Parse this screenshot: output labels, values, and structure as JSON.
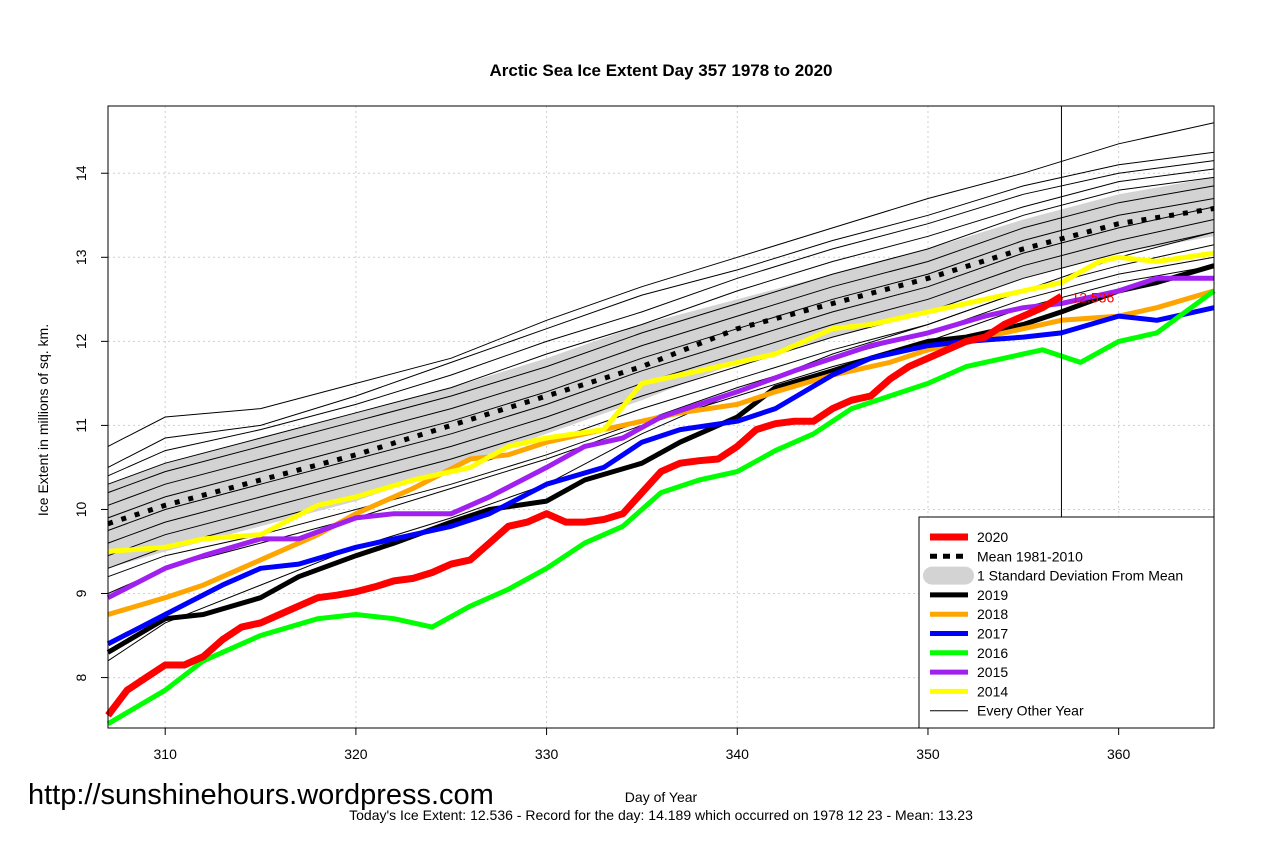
{
  "chart_data": {
    "type": "line",
    "title": "Arctic Sea Ice Extent Day 357 1978 to 2020",
    "xlabel": "Day of Year",
    "ylabel": "Ice Extent in millions of sq. km.",
    "xlim": [
      307,
      365
    ],
    "ylim": [
      7.4,
      14.8
    ],
    "xticks": [
      310,
      320,
      330,
      340,
      350,
      360
    ],
    "yticks": [
      8,
      9,
      10,
      11,
      12,
      13,
      14
    ],
    "grid": true,
    "current_day_marker": 357,
    "current_value_label": "12.536",
    "legend_position": "bottom-right",
    "band": {
      "name": "1 Standard Deviation From Mean",
      "color": "#d3d3d3",
      "x": [
        307,
        310,
        315,
        320,
        325,
        330,
        335,
        340,
        345,
        350,
        355,
        360,
        365
      ],
      "lower": [
        9.3,
        9.5,
        9.8,
        10.1,
        10.5,
        10.9,
        11.3,
        11.75,
        12.05,
        12.35,
        12.75,
        13.05,
        13.25
      ],
      "upper": [
        10.3,
        10.55,
        10.85,
        11.15,
        11.45,
        11.8,
        12.2,
        12.5,
        12.8,
        13.1,
        13.45,
        13.75,
        13.95
      ]
    },
    "mean": {
      "name": "Mean 1981-2010",
      "color": "#000000",
      "x": [
        307,
        310,
        315,
        320,
        325,
        330,
        335,
        340,
        345,
        350,
        355,
        360,
        365
      ],
      "values": [
        9.83,
        10.05,
        10.35,
        10.65,
        11.0,
        11.35,
        11.7,
        12.15,
        12.45,
        12.75,
        13.1,
        13.4,
        13.58
      ]
    },
    "series": [
      {
        "name": "2020",
        "color": "#ff0000",
        "width": 7,
        "x": [
          307,
          308,
          309,
          310,
          311,
          312,
          313,
          314,
          315,
          316,
          317,
          318,
          319,
          320,
          321,
          322,
          323,
          324,
          325,
          326,
          327,
          328,
          329,
          330,
          331,
          332,
          333,
          334,
          335,
          336,
          337,
          338,
          339,
          340,
          341,
          342,
          343,
          344,
          345,
          346,
          347,
          348,
          349,
          350,
          351,
          352,
          353,
          354,
          355,
          356,
          357
        ],
        "values": [
          7.55,
          7.85,
          8.0,
          8.15,
          8.15,
          8.25,
          8.45,
          8.6,
          8.65,
          8.75,
          8.85,
          8.95,
          8.98,
          9.02,
          9.08,
          9.15,
          9.18,
          9.25,
          9.35,
          9.4,
          9.6,
          9.8,
          9.85,
          9.95,
          9.85,
          9.85,
          9.88,
          9.95,
          10.2,
          10.45,
          10.55,
          10.58,
          10.6,
          10.75,
          10.95,
          11.02,
          11.05,
          11.05,
          11.2,
          11.3,
          11.35,
          11.55,
          11.7,
          11.8,
          11.9,
          12.0,
          12.05,
          12.2,
          12.3,
          12.4,
          12.536
        ]
      },
      {
        "name": "2019",
        "color": "#000000",
        "width": 5,
        "x": [
          307,
          310,
          312,
          315,
          317,
          320,
          322,
          325,
          327,
          330,
          332,
          335,
          337,
          340,
          342,
          345,
          347,
          350,
          352,
          355,
          357,
          360,
          362,
          365
        ],
        "values": [
          8.3,
          8.7,
          8.75,
          8.95,
          9.2,
          9.45,
          9.6,
          9.85,
          10.0,
          10.1,
          10.35,
          10.55,
          10.8,
          11.1,
          11.45,
          11.65,
          11.8,
          12.0,
          12.05,
          12.2,
          12.35,
          12.6,
          12.7,
          12.9
        ]
      },
      {
        "name": "2018",
        "color": "#ffa500",
        "width": 5,
        "x": [
          307,
          310,
          312,
          315,
          318,
          320,
          323,
          326,
          328,
          330,
          333,
          335,
          337,
          340,
          342,
          345,
          348,
          350,
          352,
          355,
          357,
          360,
          362,
          365
        ],
        "values": [
          8.75,
          8.95,
          9.1,
          9.4,
          9.7,
          9.95,
          10.25,
          10.6,
          10.65,
          10.8,
          10.95,
          11.05,
          11.15,
          11.25,
          11.4,
          11.6,
          11.75,
          11.9,
          12.0,
          12.15,
          12.25,
          12.3,
          12.4,
          12.6
        ]
      },
      {
        "name": "2017",
        "color": "#0000ff",
        "width": 5,
        "x": [
          307,
          310,
          313,
          315,
          317,
          320,
          323,
          325,
          327,
          330,
          333,
          335,
          337,
          340,
          342,
          345,
          347,
          350,
          352,
          355,
          357,
          360,
          362,
          365
        ],
        "values": [
          8.4,
          8.75,
          9.1,
          9.3,
          9.35,
          9.55,
          9.7,
          9.8,
          9.95,
          10.3,
          10.5,
          10.8,
          10.95,
          11.05,
          11.2,
          11.6,
          11.8,
          11.95,
          12.0,
          12.05,
          12.1,
          12.3,
          12.25,
          12.4
        ]
      },
      {
        "name": "2016",
        "color": "#00ff00",
        "width": 5,
        "x": [
          307,
          310,
          312,
          315,
          318,
          320,
          322,
          324,
          326,
          328,
          330,
          332,
          334,
          336,
          338,
          340,
          342,
          344,
          346,
          348,
          350,
          352,
          354,
          356,
          358,
          360,
          362,
          365
        ],
        "values": [
          7.45,
          7.85,
          8.2,
          8.5,
          8.7,
          8.75,
          8.7,
          8.6,
          8.85,
          9.05,
          9.3,
          9.6,
          9.8,
          10.2,
          10.35,
          10.45,
          10.7,
          10.9,
          11.2,
          11.35,
          11.5,
          11.7,
          11.8,
          11.9,
          11.75,
          12.0,
          12.1,
          12.6
        ]
      },
      {
        "name": "2015",
        "color": "#a020f0",
        "width": 5,
        "x": [
          307,
          310,
          312,
          315,
          317,
          320,
          322,
          325,
          327,
          330,
          332,
          334,
          336,
          338,
          340,
          343,
          345,
          347,
          350,
          353,
          355,
          357,
          360,
          362,
          365
        ],
        "values": [
          8.95,
          9.3,
          9.45,
          9.65,
          9.65,
          9.9,
          9.95,
          9.95,
          10.15,
          10.5,
          10.75,
          10.85,
          11.1,
          11.25,
          11.4,
          11.65,
          11.8,
          11.95,
          12.1,
          12.3,
          12.4,
          12.45,
          12.6,
          12.75,
          12.75
        ]
      },
      {
        "name": "2014",
        "color": "#ffff00",
        "width": 5,
        "x": [
          307,
          310,
          312,
          315,
          318,
          320,
          323,
          326,
          328,
          330,
          333,
          335,
          337,
          340,
          342,
          345,
          347,
          350,
          352,
          355,
          357,
          359,
          360,
          362,
          365
        ],
        "values": [
          9.5,
          9.55,
          9.65,
          9.7,
          10.05,
          10.15,
          10.35,
          10.5,
          10.75,
          10.85,
          10.95,
          11.5,
          11.6,
          11.75,
          11.85,
          12.15,
          12.2,
          12.35,
          12.45,
          12.6,
          12.7,
          12.95,
          13.0,
          12.95,
          13.05
        ]
      }
    ],
    "other_years": {
      "name": "Every Other Year",
      "color": "#000000",
      "width": 1,
      "x": [
        307,
        310,
        315,
        320,
        325,
        330,
        335,
        340,
        345,
        350,
        355,
        360,
        365
      ],
      "lines": [
        [
          10.75,
          11.1,
          11.2,
          11.5,
          11.8,
          12.25,
          12.65,
          13.0,
          13.35,
          13.7,
          14.0,
          14.35,
          14.6
        ],
        [
          10.5,
          10.85,
          11.0,
          11.35,
          11.75,
          12.15,
          12.55,
          12.85,
          13.2,
          13.5,
          13.85,
          14.1,
          14.25
        ],
        [
          10.4,
          10.7,
          10.95,
          11.25,
          11.6,
          12.0,
          12.35,
          12.75,
          13.1,
          13.4,
          13.75,
          14.0,
          14.15
        ],
        [
          10.3,
          10.55,
          10.85,
          11.15,
          11.45,
          11.85,
          12.2,
          12.6,
          12.95,
          13.25,
          13.6,
          13.9,
          14.05
        ],
        [
          10.2,
          10.45,
          10.75,
          11.05,
          11.35,
          11.7,
          12.1,
          12.45,
          12.8,
          13.1,
          13.5,
          13.8,
          13.95
        ],
        [
          10.05,
          10.3,
          10.6,
          10.9,
          11.2,
          11.55,
          11.95,
          12.3,
          12.65,
          12.95,
          13.35,
          13.65,
          13.85
        ],
        [
          9.9,
          10.15,
          10.45,
          10.75,
          11.05,
          11.4,
          11.8,
          12.15,
          12.5,
          12.8,
          13.2,
          13.5,
          13.7
        ],
        [
          9.75,
          10.0,
          10.3,
          10.6,
          10.9,
          11.25,
          11.65,
          12.0,
          12.35,
          12.65,
          13.05,
          13.35,
          13.6
        ],
        [
          9.6,
          9.85,
          10.15,
          10.45,
          10.75,
          11.1,
          11.5,
          11.85,
          12.2,
          12.5,
          12.9,
          13.2,
          13.45
        ],
        [
          9.45,
          9.7,
          10.0,
          10.3,
          10.6,
          10.95,
          11.35,
          11.7,
          12.05,
          12.35,
          12.75,
          13.05,
          13.3
        ],
        [
          9.3,
          9.55,
          9.85,
          10.15,
          10.45,
          10.8,
          11.2,
          11.55,
          11.9,
          12.2,
          12.6,
          12.9,
          13.15
        ],
        [
          9.2,
          9.45,
          9.7,
          10.0,
          10.3,
          10.65,
          11.05,
          11.45,
          11.8,
          12.1,
          12.5,
          12.8,
          13.0
        ],
        [
          8.2,
          8.65,
          9.1,
          9.55,
          9.9,
          10.3,
          10.9,
          11.4,
          11.85,
          12.2,
          12.6,
          13.0,
          13.3
        ],
        [
          9.0,
          9.3,
          9.6,
          9.9,
          10.25,
          10.6,
          11.0,
          11.35,
          11.7,
          12.0,
          12.4,
          12.7,
          12.9
        ]
      ]
    }
  },
  "page": {
    "url": "http://sunshinehours.wordpress.com",
    "footer": "Today's Ice Extent: 12.536  - Record for the day: 14.189 which occurred on 1978 12 23  - Mean: 13.23"
  }
}
